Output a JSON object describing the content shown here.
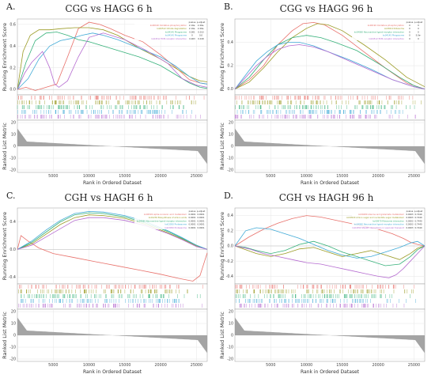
{
  "colors": [
    "#e8706a",
    "#9a9a23",
    "#36b17a",
    "#3fa9d6",
    "#b56bd0"
  ],
  "chart_data": [
    {
      "letter": "A.",
      "title": "CGG vs HAGG 6 h",
      "type": "line",
      "ylabel": "Running Enrichment Score",
      "ylabel2": "Ranked List Metric",
      "xlabel": "Rank in Ordered Dataset",
      "ylim": [
        -0.05,
        0.65
      ],
      "ylim2": [
        -22,
        22
      ],
      "yticks": [
        0.0,
        0.2,
        0.4,
        0.6
      ],
      "yticks2": [
        -20,
        -10,
        0,
        10,
        20
      ],
      "xticks": [
        5000,
        10000,
        15000,
        20000,
        25000
      ],
      "legend_header": [
        "pvalue",
        "p.adjust"
      ],
      "legend": [
        {
          "name": "ko00190 Oxidative phosphorylation",
          "p": "2.10e-",
          "padj": "2.40e-"
        },
        {
          "name": "ko00512 Citrate degradation",
          "p": "2.10e-",
          "padj": "2.40e-"
        },
        {
          "name": "ko04145 Phagosome",
          "p": "0.001",
          "padj": "0.013"
        },
        {
          "name": "ko04145 Phagosome",
          "p": "0",
          "padj": "0.0"
        },
        {
          "name": "ko04512 ECM-receptor interaction",
          "p": "0.003",
          "padj": "0.018"
        }
      ],
      "series": [
        {
          "x": [
            0,
            1200,
            2500,
            4000,
            5500,
            7000,
            8500,
            10000,
            11500,
            13000,
            15000,
            17500,
            20000,
            22500,
            24000,
            25500,
            26500
          ],
          "values": [
            0,
            0.02,
            -0.01,
            0.02,
            0.05,
            0.3,
            0.56,
            0.62,
            0.6,
            0.56,
            0.5,
            0.44,
            0.32,
            0.18,
            0.09,
            0.06,
            0.05
          ]
        },
        {
          "x": [
            0,
            800,
            1800,
            3000,
            4500,
            6000,
            8000,
            10000,
            12000,
            14000,
            17000,
            20000,
            22000,
            24000,
            25500,
            26500
          ],
          "values": [
            0,
            0.35,
            0.5,
            0.55,
            0.55,
            0.56,
            0.57,
            0.57,
            0.55,
            0.5,
            0.38,
            0.28,
            0.2,
            0.12,
            0.08,
            0.07
          ]
        },
        {
          "x": [
            0,
            1200,
            2500,
            4000,
            5500,
            7000,
            8500,
            10000,
            12000,
            14000,
            17000,
            20000,
            22000,
            24000,
            25500,
            26500
          ],
          "values": [
            0,
            0.25,
            0.45,
            0.52,
            0.53,
            0.5,
            0.46,
            0.44,
            0.4,
            0.36,
            0.3,
            0.22,
            0.14,
            0.06,
            0.02,
            0.01
          ]
        },
        {
          "x": [
            0,
            1500,
            3000,
            4500,
            6000,
            7500,
            9000,
            10500,
            12000,
            14000,
            17000,
            20000,
            22000,
            24000,
            25500,
            26500
          ],
          "values": [
            0,
            0.1,
            0.28,
            0.4,
            0.45,
            0.47,
            0.5,
            0.52,
            0.5,
            0.46,
            0.38,
            0.3,
            0.22,
            0.12,
            0.06,
            0.05
          ]
        },
        {
          "x": [
            0,
            1000,
            2000,
            3500,
            4500,
            5200,
            5800,
            7000,
            8500,
            10000,
            12000,
            15000,
            18000,
            21000,
            23000,
            25000,
            26500
          ],
          "values": [
            0,
            0.15,
            0.25,
            0.35,
            0.2,
            0.05,
            0.02,
            0.08,
            0.3,
            0.48,
            0.52,
            0.46,
            0.36,
            0.24,
            0.1,
            0.04,
            0.02
          ]
        }
      ]
    },
    {
      "letter": "B.",
      "title": "CGG vs HAGG 96 h",
      "type": "line",
      "ylabel": "Running Enrichment Score",
      "ylabel2": "Ranked List Metric",
      "xlabel": "Rank in Ordered Dataset",
      "ylim": [
        -0.05,
        0.6
      ],
      "ylim2": [
        -22,
        22
      ],
      "yticks": [
        0.0,
        0.2,
        0.4
      ],
      "yticks2": [
        -20,
        -10,
        0,
        10,
        20
      ],
      "xticks": [
        5000,
        10000,
        15000,
        20000,
        25000
      ],
      "legend_header": [
        "pvalue",
        "p.adjust"
      ],
      "legend": [
        {
          "name": "ko00190 Oxidative phosphorylation",
          "p": "0",
          "padj": "0"
        },
        {
          "name": "ko03010 Ribosome",
          "p": "0",
          "padj": "0"
        },
        {
          "name": "ko04080 Neuroactive ligand-receptor interaction",
          "p": "0",
          "padj": "0"
        },
        {
          "name": "ko04145 Phagosome",
          "p": "0",
          "padj": "5.0e-"
        },
        {
          "name": "ko04512 ECM-receptor interaction",
          "p": "0",
          "padj": "0"
        }
      ],
      "series": [
        {
          "x": [
            0,
            2000,
            4000,
            6000,
            8000,
            9500,
            11000,
            12500,
            15000,
            18000,
            21000,
            24000,
            26500
          ],
          "values": [
            0,
            0.08,
            0.2,
            0.38,
            0.5,
            0.56,
            0.57,
            0.55,
            0.46,
            0.32,
            0.18,
            0.05,
            0.0
          ]
        },
        {
          "x": [
            0,
            2000,
            4000,
            6000,
            8000,
            10000,
            11500,
            13000,
            15000,
            18000,
            21000,
            24000,
            26500
          ],
          "values": [
            0,
            0.06,
            0.18,
            0.32,
            0.44,
            0.52,
            0.56,
            0.55,
            0.5,
            0.38,
            0.25,
            0.1,
            0.02
          ]
        },
        {
          "x": [
            0,
            2000,
            4000,
            6000,
            8000,
            10000,
            12000,
            14000,
            17000,
            20000,
            23000,
            25000,
            26500
          ],
          "values": [
            0,
            0.1,
            0.25,
            0.38,
            0.44,
            0.46,
            0.44,
            0.4,
            0.33,
            0.22,
            0.1,
            0.03,
            0.0
          ]
        },
        {
          "x": [
            0,
            1500,
            3000,
            4500,
            6000,
            7500,
            9000,
            11000,
            13000,
            16000,
            19000,
            22000,
            25000,
            26500
          ],
          "values": [
            0,
            0.12,
            0.24,
            0.32,
            0.38,
            0.4,
            0.4,
            0.37,
            0.32,
            0.25,
            0.17,
            0.08,
            0.02,
            0.0
          ]
        },
        {
          "x": [
            0,
            1500,
            3000,
            4500,
            6000,
            7500,
            9000,
            11000,
            13000,
            16000,
            19000,
            22000,
            25000,
            26500
          ],
          "values": [
            0,
            0.1,
            0.2,
            0.28,
            0.34,
            0.37,
            0.38,
            0.36,
            0.32,
            0.24,
            0.16,
            0.08,
            0.02,
            0.0
          ]
        }
      ]
    },
    {
      "letter": "C.",
      "title": "CGH vs HAGH 6 h",
      "type": "line",
      "ylabel": "Running Enrichment Score",
      "ylabel2": "Ranked List Metric",
      "xlabel": "Rank in Ordered Dataset",
      "ylim": [
        -0.5,
        0.6
      ],
      "ylim2": [
        -22,
        22
      ],
      "yticks": [
        -0.4,
        0.0,
        0.4
      ],
      "yticks2": [
        -20,
        -10,
        0,
        10,
        20
      ],
      "xticks": [
        5000,
        10000,
        15000,
        20000,
        25000
      ],
      "legend_header": [
        "pvalue",
        "p.adjust"
      ],
      "legend": [
        {
          "name": "ko00592 alpha-Linolenic acid metabolism",
          "p": "0.0001",
          "padj": "0.0001"
        },
        {
          "name": "ko01230 Biosynthesis of amino acids",
          "p": "0.0001",
          "padj": "0.0001"
        },
        {
          "name": "ko04080 Neuroactive ligand-receptor interaction",
          "p": "0.0001",
          "padj": "0.0001"
        },
        {
          "name": "ko03050 Proteasome",
          "p": "0.0001",
          "padj": "0.0001"
        },
        {
          "name": "ko03050 Proteasome",
          "p": "0.0001",
          "padj": "0.0001"
        }
      ],
      "series": [
        {
          "x": [
            0,
            500,
            1500,
            3000,
            5000,
            8000,
            11000,
            14000,
            17000,
            20000,
            22500,
            24500,
            25500,
            26500
          ],
          "values": [
            0,
            0.2,
            0.12,
            0.02,
            -0.06,
            -0.12,
            -0.18,
            -0.24,
            -0.3,
            -0.36,
            -0.42,
            -0.46,
            -0.38,
            -0.05
          ]
        },
        {
          "x": [
            0,
            2000,
            4000,
            6000,
            8000,
            10000,
            12000,
            15000,
            18000,
            21000,
            23000,
            25000,
            26500
          ],
          "values": [
            0,
            0.08,
            0.22,
            0.36,
            0.46,
            0.5,
            0.49,
            0.45,
            0.36,
            0.24,
            0.15,
            0.05,
            0.0
          ]
        },
        {
          "x": [
            0,
            2000,
            4000,
            6000,
            8000,
            10000,
            12000,
            15000,
            18000,
            21000,
            23000,
            25000,
            26500
          ],
          "values": [
            0,
            0.1,
            0.25,
            0.4,
            0.5,
            0.53,
            0.52,
            0.47,
            0.38,
            0.26,
            0.16,
            0.06,
            0.0
          ]
        },
        {
          "x": [
            0,
            2000,
            4000,
            6000,
            8000,
            10000,
            12000,
            15000,
            18000,
            21000,
            23000,
            25000,
            26500
          ],
          "values": [
            0,
            0.12,
            0.28,
            0.42,
            0.52,
            0.55,
            0.54,
            0.49,
            0.4,
            0.27,
            0.17,
            0.06,
            0.0
          ]
        },
        {
          "x": [
            0,
            2000,
            4000,
            6000,
            8000,
            10000,
            12000,
            15000,
            18000,
            21000,
            23000,
            25000,
            26500
          ],
          "values": [
            0,
            0.06,
            0.18,
            0.3,
            0.42,
            0.46,
            0.46,
            0.42,
            0.34,
            0.23,
            0.14,
            0.04,
            0.0
          ]
        }
      ]
    },
    {
      "letter": "D.",
      "title": "CGH vs HAGH 96 h",
      "type": "line",
      "ylabel": "Running Enrichment Score",
      "ylabel2": "Ranked List Metric",
      "xlabel": "Rank in Ordered Dataset",
      "ylim": [
        -0.5,
        0.5
      ],
      "ylim2": [
        -22,
        22
      ],
      "yticks": [
        -0.4,
        -0.2,
        0.0,
        0.2,
        0.4
      ],
      "yticks2": [
        -20,
        -10,
        0,
        10,
        20
      ],
      "xticks": [
        5000,
        10000,
        15000,
        20000,
        25000
      ],
      "legend_header": [
        "pvalue",
        "p.adjust"
      ],
      "legend": [
        {
          "name": "ko00480 Alanine and glutamate metabolism",
          "p": "0.0003",
          "padj": "0.7440"
        },
        {
          "name": "ko00520 Amino sugar and nucleotide sugar metabolism",
          "p": "0.0003",
          "padj": "0.7440"
        },
        {
          "name": "ko00970 Ribosome interaction",
          "p": "0.0003",
          "padj": "0.7440"
        },
        {
          "name": "ko04080 Neuroactive ligand-receptor interaction",
          "p": "0.0003",
          "padj": "0.7440"
        },
        {
          "name": "ko04350 SNARE interactions in vesicular transport",
          "p": "0.0003",
          "padj": "0.7440"
        }
      ],
      "series": [
        {
          "x": [
            0,
            2000,
            4000,
            6000,
            8000,
            10000,
            12000,
            14000,
            17000,
            20000,
            22000,
            23500,
            24500,
            25500,
            26500
          ],
          "values": [
            0,
            0.12,
            0.22,
            0.3,
            0.36,
            0.4,
            0.38,
            0.34,
            0.28,
            0.22,
            0.16,
            0.1,
            0.05,
            0.02,
            0.0
          ]
        },
        {
          "x": [
            0,
            1500,
            3000,
            5000,
            7000,
            9000,
            11000,
            13000,
            15000,
            17000,
            19000,
            21000,
            23000,
            24500,
            25500,
            26500
          ],
          "values": [
            0,
            -0.05,
            -0.1,
            -0.14,
            -0.1,
            -0.04,
            -0.02,
            -0.08,
            -0.14,
            -0.1,
            -0.06,
            -0.12,
            -0.18,
            -0.1,
            -0.03,
            0.0
          ]
        },
        {
          "x": [
            0,
            1500,
            3000,
            5000,
            7000,
            9000,
            11000,
            13000,
            15000,
            17000,
            19000,
            21000,
            23000,
            24500,
            25500,
            26500
          ],
          "values": [
            0,
            -0.02,
            -0.06,
            -0.1,
            -0.06,
            0.02,
            0.06,
            0.0,
            -0.08,
            -0.14,
            -0.2,
            -0.26,
            -0.24,
            -0.14,
            -0.05,
            0.0
          ]
        },
        {
          "x": [
            0,
            1500,
            3000,
            5000,
            7000,
            9000,
            11000,
            13000,
            15000,
            17000,
            19000,
            21000,
            23000,
            24500,
            25500,
            26500
          ],
          "values": [
            0,
            0.2,
            0.24,
            0.22,
            0.16,
            0.1,
            0.02,
            -0.06,
            -0.12,
            -0.16,
            -0.14,
            -0.08,
            -0.02,
            0.04,
            0.06,
            0.0
          ]
        },
        {
          "x": [
            0,
            2000,
            4000,
            6000,
            8000,
            10000,
            12000,
            14000,
            16000,
            18000,
            20000,
            21500,
            22500,
            23500,
            24500,
            25500,
            26500
          ],
          "values": [
            0,
            -0.04,
            -0.1,
            -0.14,
            -0.18,
            -0.22,
            -0.24,
            -0.28,
            -0.32,
            -0.36,
            -0.4,
            -0.42,
            -0.38,
            -0.3,
            -0.2,
            -0.1,
            0.0
          ]
        }
      ]
    }
  ]
}
